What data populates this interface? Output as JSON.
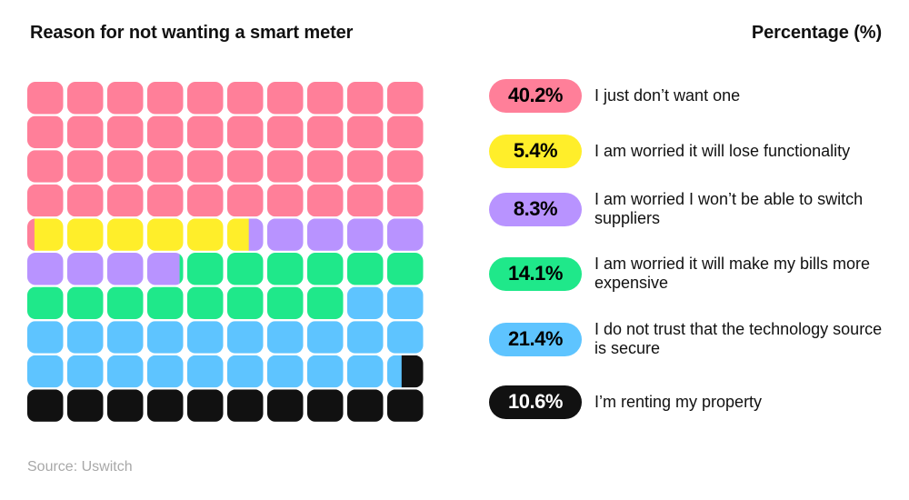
{
  "header": {
    "title": "Reason for not wanting a smart meter",
    "percentage_label": "Percentage (%)"
  },
  "chart_data": {
    "type": "waffle",
    "title": "Reason for not wanting a smart meter",
    "value_header": "Percentage (%)",
    "unit": "%",
    "total_squares": 100,
    "grid": {
      "rows": 10,
      "columns": 10,
      "fill_order": "row-major, left-to-right, top-to-bottom"
    },
    "series": [
      {
        "name": "I just don’t want one",
        "value": 40.2,
        "display": "40.2%",
        "color": "#FF7F99"
      },
      {
        "name": "I am worried it will lose functionality",
        "value": 5.4,
        "display": "5.4%",
        "color": "#FFEE2A"
      },
      {
        "name": "I am worried I won’t be able to switch suppliers",
        "value": 8.3,
        "display": "8.3%",
        "color": "#B893FF"
      },
      {
        "name": "I am worried it will make my bills more expensive",
        "value": 14.1,
        "display": "14.1%",
        "color": "#1FE88A"
      },
      {
        "name": "I do not trust that the technology source is secure",
        "value": 21.4,
        "display": "21.4%",
        "color": "#5EC4FF"
      },
      {
        "name": "I’m renting my property",
        "value": 10.6,
        "display": "10.6%",
        "color": "#111111"
      }
    ]
  },
  "footer": {
    "source": "Source: Uswitch"
  }
}
